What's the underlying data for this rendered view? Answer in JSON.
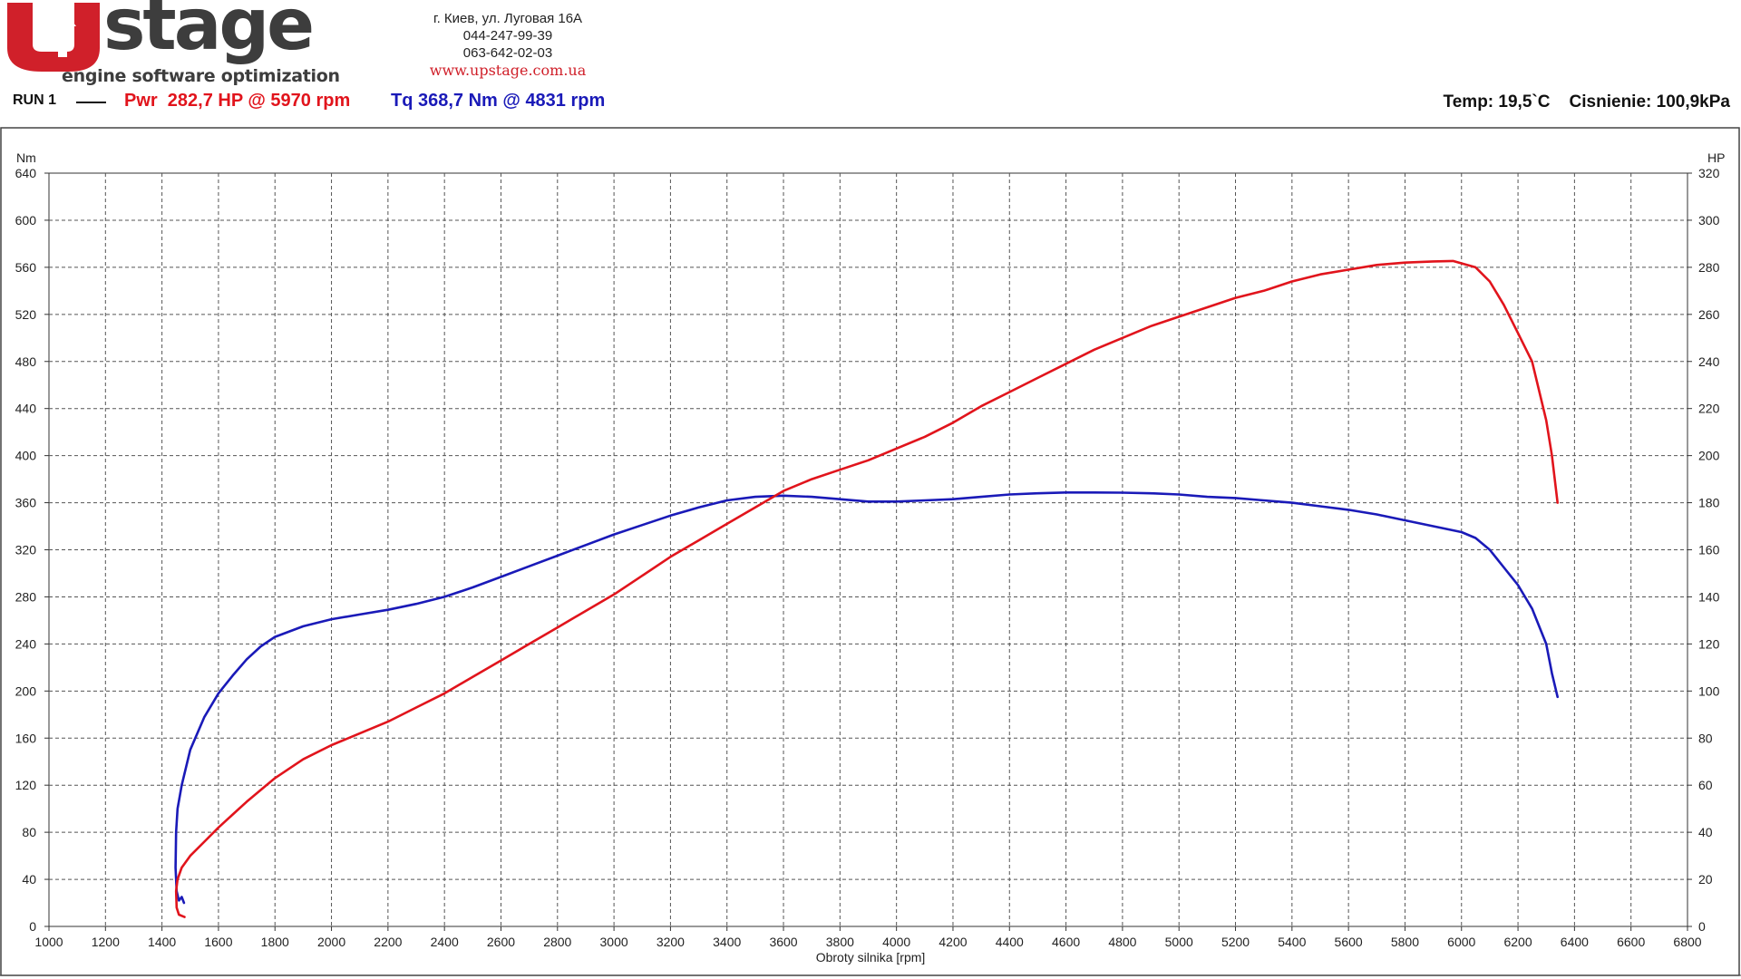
{
  "header": {
    "logo": {
      "letters": "U",
      "word": "stage",
      "tagline": "engine software optimization"
    },
    "contacts": {
      "address": "г. Киев, ул. Луговая 16А",
      "phone1": "044-247-99-39",
      "phone2": "063-642-02-03",
      "website": "www.upstage.com.ua"
    },
    "run_label": "RUN 1",
    "pwr_summary": "Pwr  282,7 HP @ 5970 rpm",
    "tq_summary": "Tq 368,7 Nm @ 4831 rpm",
    "conditions": "Temp: 19,5`C    Cisnienie: 100,9kPa"
  },
  "colors": {
    "power": "#e1141c",
    "torque": "#1a1ab8",
    "brand": "#d0202a",
    "grid": "#555555"
  },
  "chart_data": {
    "type": "line",
    "xlabel": "Obroty silnika [rpm]",
    "ylabel_left": "Nm",
    "ylabel_right": "HP",
    "xlim": [
      1000,
      6800
    ],
    "ylim_left": [
      0,
      640
    ],
    "ylim_right": [
      0,
      320
    ],
    "x_ticks": [
      "1000",
      "1200",
      "1400",
      "1600",
      "1800",
      "2000",
      "2200",
      "2400",
      "2600",
      "2800",
      "3000",
      "3200",
      "3400",
      "3600",
      "3800",
      "4000",
      "4200",
      "4400",
      "4600",
      "4800",
      "5000",
      "5200",
      "5400",
      "5600",
      "5800",
      "6000",
      "6200",
      "6400",
      "6600",
      "6800"
    ],
    "y_ticks_left": [
      "0",
      "40",
      "80",
      "120",
      "160",
      "200",
      "240",
      "280",
      "320",
      "360",
      "400",
      "440",
      "480",
      "520",
      "560",
      "600",
      "640"
    ],
    "y_ticks_right": [
      "0",
      "20",
      "40",
      "60",
      "80",
      "100",
      "120",
      "140",
      "160",
      "180",
      "200",
      "220",
      "240",
      "260",
      "280",
      "300",
      "320"
    ],
    "grid": true,
    "series": [
      {
        "name": "Tq",
        "axis": "left",
        "unit": "Nm",
        "x": [
          1478,
          1470,
          1460,
          1452,
          1448,
          1450,
          1455,
          1470,
          1500,
          1550,
          1600,
          1650,
          1700,
          1750,
          1800,
          1900,
          2000,
          2100,
          2200,
          2300,
          2400,
          2500,
          2600,
          2700,
          2800,
          2900,
          3000,
          3100,
          3200,
          3300,
          3400,
          3500,
          3600,
          3700,
          3800,
          3900,
          4000,
          4100,
          4200,
          4300,
          4400,
          4500,
          4600,
          4700,
          4800,
          4900,
          5000,
          5100,
          5200,
          5300,
          5400,
          5500,
          5600,
          5700,
          5800,
          5900,
          6000,
          6050,
          6100,
          6150,
          6200,
          6250,
          6300,
          6320,
          6340
        ],
        "y": [
          20,
          25,
          22,
          30,
          50,
          80,
          100,
          120,
          150,
          178,
          198,
          213,
          227,
          238,
          246,
          255,
          261,
          265,
          269,
          274,
          280,
          288,
          297,
          306,
          315,
          324,
          333,
          341,
          349,
          356,
          362,
          365,
          366,
          365,
          363,
          361,
          361,
          362,
          363,
          365,
          367,
          368,
          368.7,
          368.7,
          368.5,
          368,
          367,
          365,
          364,
          362,
          360,
          357,
          354,
          350,
          345,
          340,
          335,
          330,
          320,
          305,
          290,
          270,
          240,
          215,
          195
        ]
      },
      {
        "name": "Pwr",
        "axis": "right",
        "unit": "HP",
        "x": [
          1480,
          1470,
          1460,
          1452,
          1450,
          1455,
          1470,
          1500,
          1550,
          1600,
          1700,
          1800,
          1900,
          2000,
          2100,
          2200,
          2300,
          2400,
          2500,
          2600,
          2700,
          2800,
          2900,
          3000,
          3100,
          3200,
          3300,
          3400,
          3500,
          3600,
          3700,
          3800,
          3900,
          4000,
          4100,
          4200,
          4300,
          4400,
          4500,
          4600,
          4700,
          4800,
          4900,
          5000,
          5100,
          5200,
          5300,
          5400,
          5500,
          5600,
          5700,
          5800,
          5900,
          5970,
          6050,
          6100,
          6150,
          6200,
          6250,
          6300,
          6320,
          6340
        ],
        "y": [
          4,
          4.5,
          5,
          8,
          15,
          20,
          25,
          30,
          36,
          42,
          53,
          63,
          71,
          77,
          82,
          87,
          93,
          99,
          106,
          113,
          120,
          127,
          134,
          141,
          149,
          157,
          164,
          171,
          178,
          185,
          190,
          194,
          198,
          203,
          208,
          214,
          221,
          227,
          233,
          239,
          245,
          250,
          255,
          259,
          263,
          267,
          270,
          274,
          277,
          279,
          281,
          282,
          282.5,
          282.7,
          280,
          274,
          264,
          252,
          240,
          215,
          200,
          180
        ]
      }
    ]
  }
}
